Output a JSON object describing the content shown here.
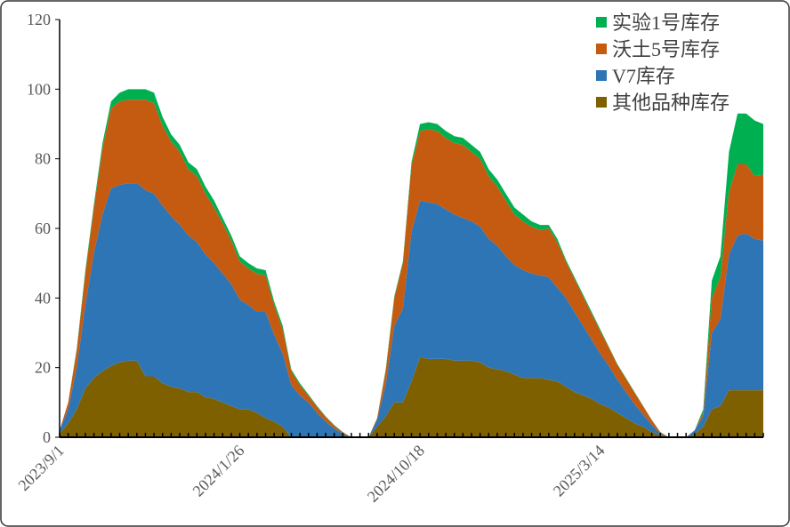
{
  "chart_data": {
    "type": "stacked-area",
    "categories": [
      "2023/9/1",
      null,
      null,
      null,
      null,
      null,
      null,
      null,
      null,
      null,
      null,
      null,
      null,
      null,
      null,
      null,
      null,
      null,
      null,
      null,
      null,
      "2024/1/26",
      null,
      null,
      null,
      null,
      null,
      null,
      null,
      null,
      null,
      null,
      null,
      null,
      null,
      null,
      null,
      null,
      null,
      null,
      null,
      null,
      "2024/10/18",
      null,
      null,
      null,
      null,
      null,
      null,
      null,
      null,
      null,
      null,
      null,
      null,
      null,
      null,
      null,
      null,
      null,
      null,
      null,
      null,
      "2025/3/14",
      null,
      null,
      null,
      null,
      null,
      null,
      null,
      null,
      null,
      null,
      null,
      null,
      null,
      null,
      null,
      null,
      null,
      null,
      null
    ],
    "series": [
      {
        "name": "其他品种库存",
        "color": "#7f6000",
        "values": [
          1,
          4,
          8,
          14,
          17,
          19,
          20.5,
          21.5,
          22,
          22,
          17.5,
          17.5,
          15.5,
          14.5,
          14,
          13,
          13,
          11.5,
          11,
          10,
          9,
          8,
          8,
          7,
          5.5,
          4.5,
          3,
          0,
          0,
          0,
          0,
          0,
          0,
          0,
          0,
          0,
          0,
          3,
          6,
          10,
          10,
          16,
          23,
          22.5,
          22.5,
          22.5,
          22,
          22,
          22,
          21.5,
          20,
          19.5,
          19,
          18,
          17,
          17,
          17,
          16.5,
          16,
          14.5,
          13,
          12,
          11,
          9.5,
          8.5,
          7,
          5.5,
          4,
          3,
          1.5,
          0.5,
          0,
          0,
          0,
          1,
          3,
          8,
          9,
          13.5,
          13.5,
          13.5,
          13.5,
          13.5
        ]
      },
      {
        "name": "V7库存",
        "color": "#2e75b6",
        "values": [
          1,
          4,
          12,
          24,
          36,
          45,
          51,
          51,
          51,
          51,
          53.5,
          52.5,
          51,
          49,
          47,
          45,
          43,
          41,
          39,
          37,
          35,
          31.5,
          30,
          29,
          30.5,
          25,
          21,
          15,
          12,
          10,
          7,
          4.5,
          2.5,
          1,
          0,
          0,
          0,
          2,
          9,
          22,
          27,
          43,
          45,
          45,
          44.5,
          43,
          42,
          41,
          40,
          39,
          37,
          35.5,
          33,
          31.5,
          31,
          30,
          29.5,
          29.5,
          27,
          25.5,
          23,
          20,
          17,
          14.5,
          12,
          9.5,
          7.5,
          5.5,
          3.5,
          2,
          0.5,
          0,
          0,
          0,
          1,
          3,
          22,
          25,
          39,
          44.5,
          45,
          43.5,
          43
        ]
      },
      {
        "name": "沃土5号库存",
        "color": "#c55a11",
        "values": [
          0,
          2,
          5,
          9,
          13,
          19,
          23,
          24,
          24,
          24,
          26,
          26,
          23,
          21.5,
          21,
          19,
          19,
          17.5,
          16,
          14.5,
          12.5,
          11,
          10.5,
          11,
          10.5,
          8.5,
          7,
          4,
          3,
          2,
          1.7,
          1.3,
          0.8,
          0.4,
          0,
          0,
          0,
          0.5,
          4,
          8,
          13,
          19,
          20,
          21,
          21,
          20.5,
          20.5,
          21,
          20,
          19.5,
          18,
          17,
          16,
          14.5,
          14,
          13.5,
          13,
          14,
          13,
          10.5,
          9.5,
          8.5,
          7.5,
          6.5,
          5.3,
          4.3,
          3.8,
          3.3,
          2.4,
          1.4,
          0.4,
          0,
          0,
          0,
          0,
          1,
          10,
          12,
          18,
          20.5,
          20,
          18,
          19
        ]
      },
      {
        "name": "实验1号库存",
        "color": "#00b050",
        "values": [
          0,
          0,
          0.5,
          1,
          1,
          1.5,
          2,
          2.5,
          3,
          3,
          3,
          3,
          2.5,
          2,
          2,
          2,
          2,
          2,
          2,
          1.5,
          1.5,
          1.5,
          1.5,
          1.5,
          1.5,
          1,
          1,
          0.5,
          0.5,
          0.3,
          0.3,
          0.2,
          0.2,
          0.1,
          0,
          0,
          0,
          0,
          0.5,
          0.5,
          0.5,
          1,
          2,
          2,
          2,
          2,
          2,
          2,
          2,
          2,
          2,
          2,
          2,
          2,
          2,
          1.5,
          1.5,
          1,
          1,
          0.5,
          0.5,
          0.5,
          0.5,
          0.5,
          0.2,
          0.2,
          0.2,
          0.2,
          0.1,
          0.1,
          0.1,
          0,
          0,
          0,
          0,
          1,
          5,
          6,
          11.5,
          14.5,
          14.5,
          16,
          14.5
        ]
      }
    ],
    "ylim": [
      0,
      120
    ],
    "yticks": [
      0,
      20,
      40,
      60,
      80,
      100,
      120
    ],
    "grid": false,
    "legend": "top-right"
  }
}
